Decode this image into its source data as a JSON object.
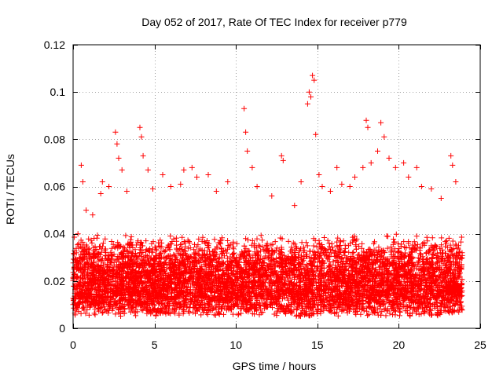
{
  "chart_data": {
    "type": "scatter",
    "title": "Day 052 of 2017, Rate Of TEC Index for receiver p779",
    "xlabel": "GPS time / hours",
    "ylabel": "ROTI / TECUs",
    "xlim": [
      0,
      25
    ],
    "ylim": [
      0,
      0.12
    ],
    "xticks": [
      0,
      5,
      10,
      15,
      20,
      25
    ],
    "xtick_labels": [
      "0",
      "5",
      "10",
      "15",
      "20",
      "25"
    ],
    "yticks": [
      0,
      0.02,
      0.04,
      0.06,
      0.08,
      0.1,
      0.12
    ],
    "ytick_labels": [
      "0",
      "0.02",
      "0.04",
      "0.06",
      "0.08",
      "0.1",
      "0.12"
    ],
    "grid": true,
    "marker": "+",
    "marker_color": "#ff0000",
    "series": [
      {
        "name": "ROTI",
        "time_range": [
          0,
          23.9
        ],
        "typical_range": [
          0.005,
          0.04
        ],
        "points": [
          [
            0.3,
            0.04
          ],
          [
            0.5,
            0.069
          ],
          [
            0.6,
            0.062
          ],
          [
            0.8,
            0.05
          ],
          [
            1.2,
            0.048
          ],
          [
            1.7,
            0.057
          ],
          [
            1.8,
            0.062
          ],
          [
            2.2,
            0.06
          ],
          [
            2.6,
            0.083
          ],
          [
            2.7,
            0.078
          ],
          [
            2.8,
            0.072
          ],
          [
            3.0,
            0.067
          ],
          [
            3.3,
            0.058
          ],
          [
            4.1,
            0.085
          ],
          [
            4.2,
            0.081
          ],
          [
            4.3,
            0.073
          ],
          [
            4.6,
            0.067
          ],
          [
            4.9,
            0.059
          ],
          [
            5.5,
            0.065
          ],
          [
            6.0,
            0.06
          ],
          [
            6.6,
            0.061
          ],
          [
            6.8,
            0.067
          ],
          [
            7.3,
            0.068
          ],
          [
            7.6,
            0.064
          ],
          [
            8.3,
            0.065
          ],
          [
            8.8,
            0.058
          ],
          [
            9.5,
            0.062
          ],
          [
            10.5,
            0.093
          ],
          [
            10.6,
            0.083
          ],
          [
            10.7,
            0.075
          ],
          [
            11.0,
            0.068
          ],
          [
            11.3,
            0.06
          ],
          [
            12.2,
            0.056
          ],
          [
            12.8,
            0.073
          ],
          [
            12.9,
            0.071
          ],
          [
            13.6,
            0.052
          ],
          [
            14.0,
            0.062
          ],
          [
            14.4,
            0.095
          ],
          [
            14.5,
            0.1
          ],
          [
            14.6,
            0.098
          ],
          [
            14.7,
            0.107
          ],
          [
            14.8,
            0.105
          ],
          [
            14.9,
            0.082
          ],
          [
            15.1,
            0.065
          ],
          [
            15.3,
            0.06
          ],
          [
            15.8,
            0.058
          ],
          [
            16.2,
            0.068
          ],
          [
            16.5,
            0.061
          ],
          [
            17.0,
            0.06
          ],
          [
            17.3,
            0.064
          ],
          [
            17.8,
            0.068
          ],
          [
            18.0,
            0.088
          ],
          [
            18.1,
            0.085
          ],
          [
            18.3,
            0.07
          ],
          [
            18.7,
            0.075
          ],
          [
            18.9,
            0.087
          ],
          [
            19.1,
            0.081
          ],
          [
            19.4,
            0.072
          ],
          [
            19.8,
            0.068
          ],
          [
            20.3,
            0.07
          ],
          [
            20.6,
            0.064
          ],
          [
            21.1,
            0.068
          ],
          [
            21.4,
            0.06
          ],
          [
            22.0,
            0.059
          ],
          [
            22.6,
            0.055
          ],
          [
            23.2,
            0.073
          ],
          [
            23.3,
            0.069
          ],
          [
            23.5,
            0.062
          ]
        ]
      }
    ]
  }
}
